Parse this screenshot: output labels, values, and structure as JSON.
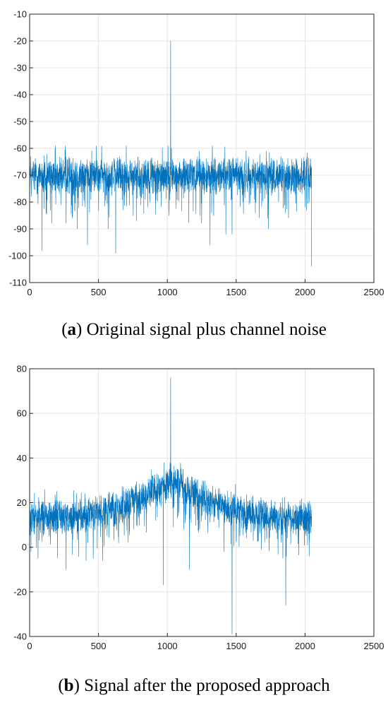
{
  "chart_data": [
    {
      "type": "line",
      "panel": "a",
      "caption_letter": "a",
      "caption_text": "Original signal plus channel noise",
      "xlim": [
        0,
        2500
      ],
      "ylim": [
        -110,
        -10
      ],
      "xticks": [
        0,
        500,
        1000,
        1500,
        2000,
        2500
      ],
      "yticks": [
        -110,
        -100,
        -90,
        -80,
        -70,
        -60,
        -50,
        -40,
        -30,
        -20,
        -10
      ],
      "grid": true,
      "color": "#0072BD",
      "n_points": 2048,
      "spike": {
        "x": 1024,
        "y": -20
      },
      "outliers": [
        {
          "x": 90,
          "y": -98
        },
        {
          "x": 160,
          "y": -88
        },
        {
          "x": 265,
          "y": -88
        },
        {
          "x": 345,
          "y": -90
        },
        {
          "x": 420,
          "y": -96
        },
        {
          "x": 570,
          "y": -90
        },
        {
          "x": 625,
          "y": -99
        },
        {
          "x": 775,
          "y": -87
        },
        {
          "x": 1310,
          "y": -96
        },
        {
          "x": 1425,
          "y": -92
        },
        {
          "x": 1470,
          "y": -92
        },
        {
          "x": 1735,
          "y": -90
        },
        {
          "x": 1880,
          "y": -86
        },
        {
          "x": 2048,
          "y": -104
        }
      ],
      "baseline": -70,
      "series": [
        {
          "values_summary": "noise floor approx. -75 to -60 with central spike at -20"
        }
      ]
    },
    {
      "type": "line",
      "panel": "b",
      "caption_letter": "b",
      "caption_text": "Signal after the proposed approach",
      "xlim": [
        0,
        2500
      ],
      "ylim": [
        -40,
        80
      ],
      "xticks": [
        0,
        500,
        1000,
        1500,
        2000,
        2500
      ],
      "yticks": [
        -40,
        -20,
        0,
        20,
        40,
        60,
        80
      ],
      "grid": true,
      "color": "#0072BD",
      "n_points": 2048,
      "spike": {
        "x": 1024,
        "y": 76
      },
      "outliers": [
        {
          "x": 10,
          "y": -2
        },
        {
          "x": 265,
          "y": -10
        },
        {
          "x": 410,
          "y": -6
        },
        {
          "x": 530,
          "y": -6
        },
        {
          "x": 970,
          "y": -17
        },
        {
          "x": 1160,
          "y": -10
        },
        {
          "x": 1470,
          "y": -39
        },
        {
          "x": 1860,
          "y": -26
        },
        {
          "x": 2030,
          "y": -4
        }
      ],
      "baseline_edges": 13,
      "baseline_center": 30,
      "series": [
        {
          "values_summary": "noise approx. 5 to 25, rising to ~30 near center, spike at 76"
        }
      ]
    }
  ]
}
